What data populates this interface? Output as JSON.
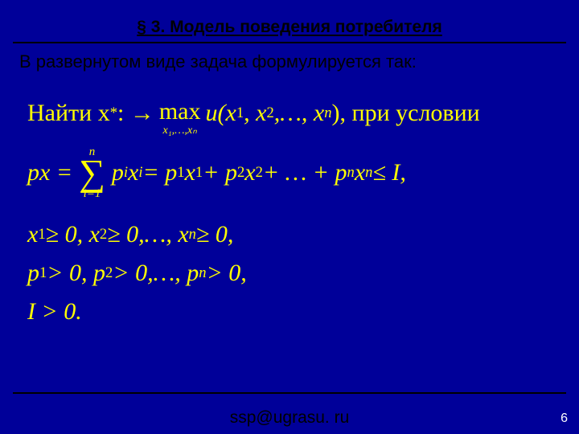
{
  "colors": {
    "background": "#000099",
    "title_text": "#000000",
    "body_text": "#000000",
    "math_text": "#ffff00",
    "pagenum_text": "#ffffff",
    "rule_color": "#000000"
  },
  "title": "§ 3. Модель поведения потребителя",
  "subtitle": "В развернутом виде задача формулируется так:",
  "math": {
    "line1_prefix": "Найти x",
    "line1_sup": "*",
    "line1_mid": " : → ",
    "line1_max_word": "max",
    "line1_max_sub": "x₁,…,xₙ",
    "line1_u": " u(x",
    "line1_s1": "1",
    "line1_c1": ", x",
    "line1_s2": "2",
    "line1_c2": ",…, x",
    "line1_sn": "n",
    "line1_end": "), при условии",
    "line2_lhs": "px = ",
    "line2_sum_top": "n",
    "line2_sum_sym": "∑",
    "line2_sum_bot": "i=1",
    "line2_pix": " p",
    "line2_i1": "i",
    "line2_x": " x",
    "line2_i2": "i",
    "line2_eq": " = p",
    "line2_s1": "1",
    "line2_x1": "x",
    "line2_s1b": "1",
    "line2_plus1": " + p",
    "line2_s2": "2",
    "line2_x2": "x",
    "line2_s2b": "2",
    "line2_plus2": " + … + p",
    "line2_sn": "n",
    "line2_xn": "x",
    "line2_snb": "n",
    "line2_end": " ≤ I,",
    "line3_a": "x",
    "line3_s1": "1",
    "line3_b": " ≥ 0, x",
    "line3_s2": "2",
    "line3_c": " ≥ 0,…, x",
    "line3_sn": "n",
    "line3_d": " ≥ 0,",
    "line4_a": "p",
    "line4_s1": "1",
    "line4_b": " > 0, p",
    "line4_s2": "2",
    "line4_c": " > 0,…, p",
    "line4_sn": "n",
    "line4_d": " > 0,",
    "line5": "I > 0."
  },
  "footer": "ssp@ugrasu. ru",
  "page_number": "6"
}
